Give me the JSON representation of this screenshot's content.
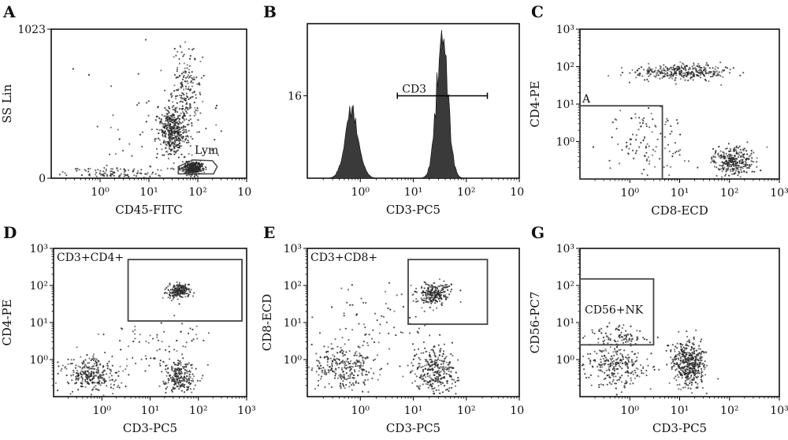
{
  "figure": {
    "title": ""
  },
  "colors": {
    "dot": "#2b2b2b",
    "gate": "#444444",
    "hist": "#3a3a3a",
    "axis": "#000000"
  },
  "chart_data": [
    {
      "id": "A",
      "letter": "A",
      "type": "scatter",
      "xlabel": "CD45-FITC",
      "ylabel": "SS Lin",
      "x_scale": "log",
      "xlim": [
        0.1,
        1000
      ],
      "x_ticks": [
        1,
        10,
        100,
        1000
      ],
      "y_scale": "linear",
      "ylim": [
        0,
        1023
      ],
      "y_ticks": [
        0,
        1023
      ],
      "populations": [
        {
          "name": "granulocytes",
          "cx": 30,
          "cy": 330,
          "sx": 0.14,
          "sy": 80,
          "n": 420
        },
        {
          "name": "granulocyte tail",
          "cx": 60,
          "cy": 600,
          "sx": 0.13,
          "sy": 160,
          "n": 180
        },
        {
          "name": "lymphocytes",
          "cx": 80,
          "cy": 70,
          "sx": 0.11,
          "sy": 22,
          "n": 340
        },
        {
          "name": "debris",
          "cx": 2,
          "cy": 30,
          "sx": 0.6,
          "sy": 25,
          "n": 120
        },
        {
          "name": "scatter",
          "cx": 15,
          "cy": 400,
          "sx": 0.7,
          "sy": 300,
          "n": 70
        }
      ],
      "gates": [
        {
          "shape": "polygon",
          "label": "Lym",
          "points": [
            [
              40,
              30
            ],
            [
              210,
              30
            ],
            [
              250,
              80
            ],
            [
              200,
              120
            ],
            [
              80,
              125
            ],
            [
              40,
              80
            ]
          ]
        }
      ]
    },
    {
      "id": "B",
      "letter": "B",
      "type": "histogram",
      "xlabel": "CD3-PC5",
      "ylabel": "",
      "x_scale": "log",
      "xlim": [
        0.1,
        1000
      ],
      "x_ticks": [
        1,
        10,
        100,
        1000
      ],
      "y_scale": "linear",
      "ylim": [
        0,
        30
      ],
      "y_ticks": [
        16
      ],
      "peaks": [
        {
          "center": 0.7,
          "height": 13,
          "width": 0.13
        },
        {
          "center": 35,
          "height": 27,
          "width": 0.11
        }
      ],
      "gates": [
        {
          "shape": "range",
          "label": "CD3",
          "x_range": [
            5,
            250
          ],
          "y": 16
        }
      ]
    },
    {
      "id": "C",
      "letter": "C",
      "type": "scatter",
      "xlabel": "CD8-ECD",
      "ylabel": "CD4-PE",
      "x_scale": "log",
      "xlim": [
        0.1,
        1000
      ],
      "x_ticks": [
        1,
        10,
        100,
        1000
      ],
      "y_scale": "log",
      "ylim": [
        0.1,
        1000
      ],
      "y_ticks": [
        1,
        10,
        100,
        1000
      ],
      "populations": [
        {
          "name": "CD4+",
          "cx": 10,
          "cy": 70,
          "sx": 0.45,
          "sy": 0.1,
          "n": 320
        },
        {
          "name": "CD8+",
          "cx": 120,
          "cy": 0.3,
          "sx": 0.2,
          "sy": 0.18,
          "n": 300
        },
        {
          "name": "double negative",
          "cx": 3,
          "cy": 1,
          "sx": 0.45,
          "sy": 0.45,
          "n": 110
        }
      ],
      "gates": [
        {
          "shape": "rect",
          "label": "A",
          "x_range": [
            0.1,
            4.5
          ],
          "y_range": [
            0.1,
            9
          ]
        }
      ]
    },
    {
      "id": "D",
      "letter": "D",
      "type": "scatter",
      "xlabel": "CD3-PC5",
      "ylabel": "CD4-PE",
      "x_scale": "log",
      "xlim": [
        0.1,
        1000
      ],
      "x_ticks": [
        1,
        10,
        100,
        1000
      ],
      "y_scale": "log",
      "ylim": [
        0.1,
        1000
      ],
      "y_ticks": [
        1,
        10,
        100,
        1000
      ],
      "populations": [
        {
          "name": "CD3+CD4+",
          "cx": 40,
          "cy": 70,
          "sx": 0.12,
          "sy": 0.1,
          "n": 200
        },
        {
          "name": "CD3- CD4-",
          "cx": 0.6,
          "cy": 0.4,
          "sx": 0.28,
          "sy": 0.25,
          "n": 280
        },
        {
          "name": "CD3+CD4-",
          "cx": 40,
          "cy": 0.35,
          "sx": 0.17,
          "sy": 0.22,
          "n": 230
        },
        {
          "name": "scatter",
          "cx": 10,
          "cy": 2,
          "sx": 0.6,
          "sy": 0.45,
          "n": 80
        }
      ],
      "gates": [
        {
          "shape": "rect",
          "label": "CD3+CD4+",
          "x_range": [
            3.5,
            800
          ],
          "y_range": [
            11,
            500
          ],
          "label_at": "top-left-outside"
        }
      ]
    },
    {
      "id": "E",
      "letter": "E",
      "type": "scatter",
      "xlabel": "CD3-PC5",
      "ylabel": "CD8-ECD",
      "x_scale": "log",
      "xlim": [
        0.1,
        1000
      ],
      "x_ticks": [
        1,
        10,
        100,
        1000
      ],
      "y_scale": "log",
      "ylim": [
        0.1,
        1000
      ],
      "y_ticks": [
        1,
        10,
        100,
        1000
      ],
      "populations": [
        {
          "name": "CD3+CD8+",
          "cx": 25,
          "cy": 60,
          "sx": 0.15,
          "sy": 0.15,
          "n": 230
        },
        {
          "name": "CD3- CD8-",
          "cx": 0.5,
          "cy": 0.6,
          "sx": 0.3,
          "sy": 0.3,
          "n": 260
        },
        {
          "name": "CD3+CD8-",
          "cx": 25,
          "cy": 0.5,
          "sx": 0.2,
          "sy": 0.3,
          "n": 290
        },
        {
          "name": "scatter",
          "cx": 3,
          "cy": 5,
          "sx": 0.6,
          "sy": 0.6,
          "n": 90
        }
      ],
      "gates": [
        {
          "shape": "rect",
          "label": "CD3+CD8+",
          "x_range": [
            8,
            250
          ],
          "y_range": [
            9,
            500
          ],
          "label_at": "top-left-outside"
        }
      ]
    },
    {
      "id": "G",
      "letter": "G",
      "type": "scatter",
      "xlabel": "CD3-PC5",
      "ylabel": "CD56-PC7",
      "x_scale": "log",
      "xlim": [
        0.1,
        1000
      ],
      "x_ticks": [
        1,
        10,
        100,
        1000
      ],
      "y_scale": "log",
      "ylim": [
        0.1,
        1000
      ],
      "y_ticks": [
        1,
        10,
        100,
        1000
      ],
      "populations": [
        {
          "name": "CD56+NK",
          "cx": 0.6,
          "cy": 4,
          "sx": 0.3,
          "sy": 0.2,
          "n": 90
        },
        {
          "name": "CD3- CD56-",
          "cx": 0.5,
          "cy": 0.6,
          "sx": 0.3,
          "sy": 0.3,
          "n": 250
        },
        {
          "name": "CD3+",
          "cx": 15,
          "cy": 0.8,
          "sx": 0.17,
          "sy": 0.33,
          "n": 450
        }
      ],
      "gates": [
        {
          "shape": "rect",
          "label": "CD56+NK",
          "x_range": [
            0.1,
            3
          ],
          "y_range": [
            2.5,
            150
          ],
          "label_at": "inside-middle"
        }
      ]
    }
  ]
}
